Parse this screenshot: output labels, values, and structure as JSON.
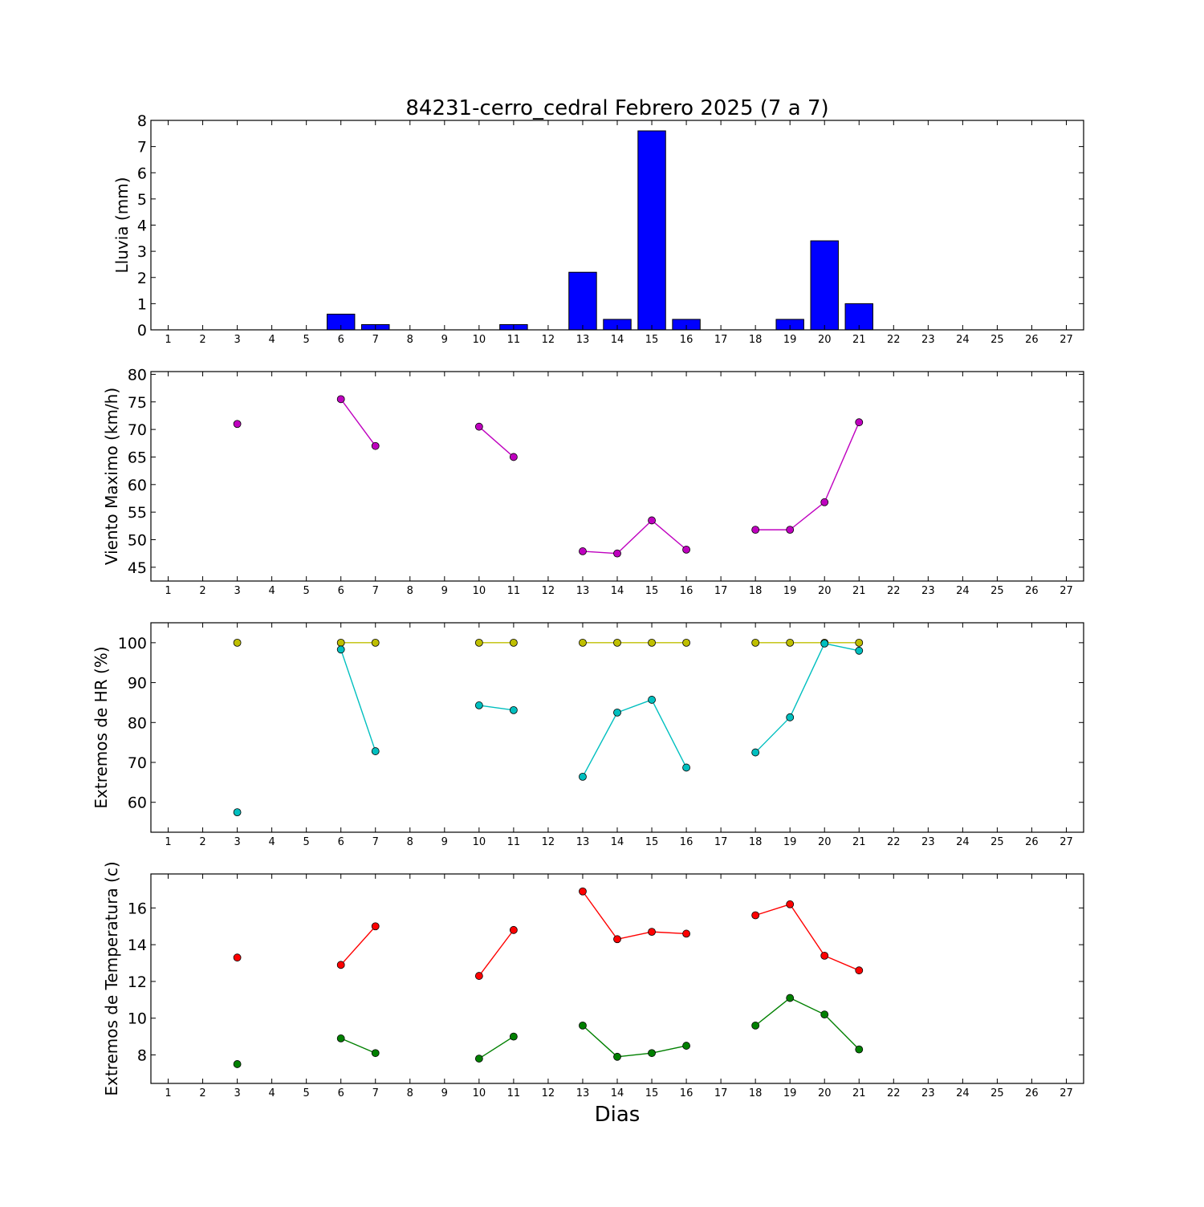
{
  "figure": {
    "title": "84231-cerro_cedral Febrero 2025  (7 a 7)",
    "xlabel": "Dias"
  },
  "chart_data": [
    {
      "type": "bar",
      "ylabel": "Lluvia (mm)",
      "xlim": [
        0.5,
        27.5
      ],
      "ylim": [
        0,
        8
      ],
      "yticks": [
        0,
        1,
        2,
        3,
        4,
        5,
        6,
        7,
        8
      ],
      "x_ticks": [
        1,
        2,
        3,
        4,
        5,
        6,
        7,
        8,
        9,
        10,
        11,
        12,
        13,
        14,
        15,
        16,
        17,
        18,
        19,
        20,
        21,
        22,
        23,
        24,
        25,
        26,
        27
      ],
      "grid": false,
      "series": [
        {
          "color": "#0000ff",
          "points": [
            [
              3,
              0
            ],
            [
              6,
              0.6
            ],
            [
              7,
              0.2
            ],
            [
              10,
              0
            ],
            [
              11,
              0.2
            ],
            [
              13,
              2.2
            ],
            [
              14,
              0.4
            ],
            [
              15,
              7.6
            ],
            [
              16,
              0.4
            ],
            [
              18,
              0
            ],
            [
              19,
              0.4
            ],
            [
              20,
              3.4
            ],
            [
              21,
              1.0
            ]
          ]
        }
      ]
    },
    {
      "type": "line",
      "ylabel": "Viento Maximo (km/h)",
      "xlim": [
        0.5,
        27.5
      ],
      "ylim": [
        42.5,
        80.5
      ],
      "yticks": [
        45,
        50,
        55,
        60,
        65,
        70,
        75,
        80
      ],
      "x_ticks": [
        1,
        2,
        3,
        4,
        5,
        6,
        7,
        8,
        9,
        10,
        11,
        12,
        13,
        14,
        15,
        16,
        17,
        18,
        19,
        20,
        21,
        22,
        23,
        24,
        25,
        26,
        27
      ],
      "grid": false,
      "series": [
        {
          "color": "#bf00bf",
          "points": [
            [
              3,
              71.0
            ],
            [
              6,
              75.5
            ],
            [
              7,
              67.0
            ],
            [
              10,
              70.5
            ],
            [
              11,
              65.0
            ],
            [
              13,
              47.9
            ],
            [
              14,
              47.5
            ],
            [
              15,
              53.5
            ],
            [
              16,
              48.2
            ],
            [
              18,
              51.8
            ],
            [
              19,
              51.8
            ],
            [
              20,
              56.8
            ],
            [
              21,
              71.3
            ]
          ]
        }
      ]
    },
    {
      "type": "line",
      "ylabel": "Extremos de HR (%)",
      "xlim": [
        0.5,
        27.5
      ],
      "ylim": [
        52.5,
        105
      ],
      "yticks": [
        60,
        70,
        80,
        90,
        100
      ],
      "x_ticks": [
        1,
        2,
        3,
        4,
        5,
        6,
        7,
        8,
        9,
        10,
        11,
        12,
        13,
        14,
        15,
        16,
        17,
        18,
        19,
        20,
        21,
        22,
        23,
        24,
        25,
        26,
        27
      ],
      "grid": false,
      "series": [
        {
          "color": "#bfbf00",
          "points": [
            [
              3,
              100
            ],
            [
              6,
              100
            ],
            [
              7,
              100
            ],
            [
              10,
              100
            ],
            [
              11,
              100
            ],
            [
              13,
              100
            ],
            [
              14,
              100
            ],
            [
              15,
              100
            ],
            [
              16,
              100
            ],
            [
              18,
              100
            ],
            [
              19,
              100
            ],
            [
              20,
              100
            ],
            [
              21,
              100
            ]
          ]
        },
        {
          "color": "#00bfbf",
          "points": [
            [
              3,
              57.5
            ],
            [
              6,
              98.3
            ],
            [
              7,
              72.8
            ],
            [
              10,
              84.3
            ],
            [
              11,
              83.1
            ],
            [
              13,
              66.4
            ],
            [
              14,
              82.5
            ],
            [
              15,
              85.7
            ],
            [
              16,
              68.7
            ],
            [
              18,
              72.5
            ],
            [
              19,
              81.3
            ],
            [
              20,
              99.8
            ],
            [
              21,
              98.0
            ]
          ]
        }
      ]
    },
    {
      "type": "line",
      "ylabel": "Extremos de Temperatura (c)",
      "xlim": [
        0.5,
        27.5
      ],
      "ylim": [
        6.45,
        17.85
      ],
      "yticks": [
        8,
        10,
        12,
        14,
        16
      ],
      "x_ticks": [
        1,
        2,
        3,
        4,
        5,
        6,
        7,
        8,
        9,
        10,
        11,
        12,
        13,
        14,
        15,
        16,
        17,
        18,
        19,
        20,
        21,
        22,
        23,
        24,
        25,
        26,
        27
      ],
      "grid": false,
      "series": [
        {
          "color": "#ff0000",
          "points": [
            [
              3,
              13.3
            ],
            [
              6,
              12.9
            ],
            [
              7,
              15.0
            ],
            [
              10,
              12.3
            ],
            [
              11,
              14.8
            ],
            [
              13,
              16.9
            ],
            [
              14,
              14.3
            ],
            [
              15,
              14.7
            ],
            [
              16,
              14.6
            ],
            [
              18,
              15.6
            ],
            [
              19,
              16.2
            ],
            [
              20,
              13.4
            ],
            [
              21,
              12.6
            ]
          ]
        },
        {
          "color": "#008000",
          "points": [
            [
              3,
              7.5
            ],
            [
              6,
              8.9
            ],
            [
              7,
              8.1
            ],
            [
              10,
              7.8
            ],
            [
              11,
              9.0
            ],
            [
              13,
              9.6
            ],
            [
              14,
              7.9
            ],
            [
              15,
              8.1
            ],
            [
              16,
              8.5
            ],
            [
              18,
              9.6
            ],
            [
              19,
              11.1
            ],
            [
              20,
              10.2
            ],
            [
              21,
              8.3
            ]
          ]
        }
      ]
    }
  ]
}
